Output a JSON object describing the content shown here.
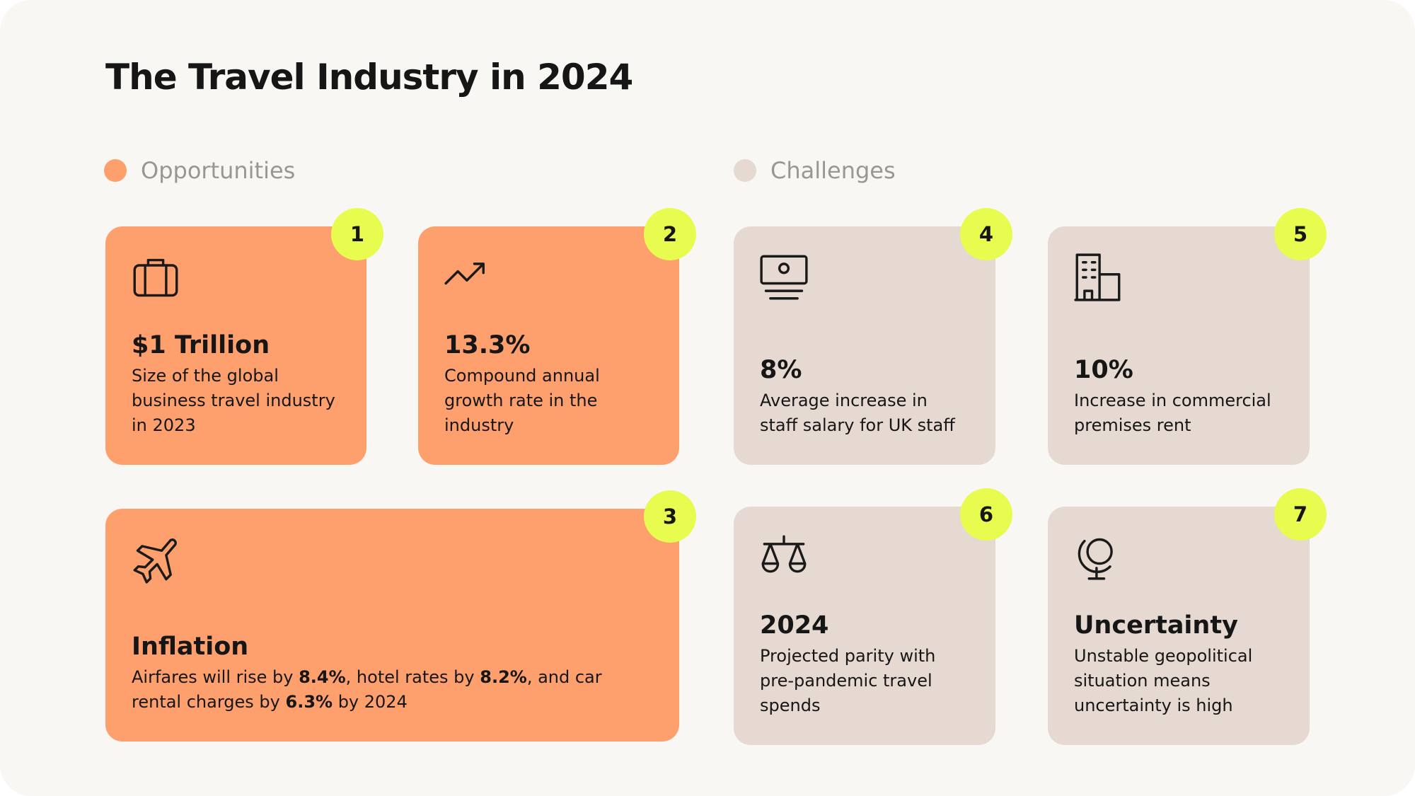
{
  "title": "The Travel Industry in 2024",
  "legend": [
    {
      "label": "Opportunities",
      "color": "#fda06e"
    },
    {
      "label": "Challenges",
      "color": "#e5d9d1"
    }
  ],
  "badge_color": "#e8fb4f",
  "cards": [
    {
      "badge": "1",
      "headline": "$1 Trillion",
      "description": "Size of the global business travel industry in 2023",
      "color": "#fda06e"
    },
    {
      "badge": "2",
      "headline": "13.3%",
      "description": "Compound annual growth rate in the industry",
      "color": "#fda06e"
    },
    {
      "badge": "3",
      "headline": "Inflation",
      "description_parts": [
        {
          "text": "Airfares will rise by "
        },
        {
          "text": "8.4%",
          "bold": true
        },
        {
          "text": ", hotel rates by "
        },
        {
          "text": "8.2%",
          "bold": true
        },
        {
          "text": ", and car rental charges by "
        },
        {
          "text": "6.3%",
          "bold": true
        },
        {
          "text": " by 2024"
        }
      ],
      "color": "#fda06e"
    },
    {
      "badge": "4",
      "headline": "8%",
      "description": "Average increase in staff salary for UK staff",
      "color": "#e5d9d1"
    },
    {
      "badge": "5",
      "headline": "10%",
      "description": "Increase in commercial premises rent",
      "color": "#e5d9d1"
    },
    {
      "badge": "6",
      "headline": "2024",
      "description": "Projected parity with pre-pandemic travel spends",
      "color": "#e5d9d1"
    },
    {
      "badge": "7",
      "headline": "Uncertainty",
      "description": "Unstable geopolitical situation means uncertainty is high",
      "color": "#e5d9d1"
    }
  ]
}
